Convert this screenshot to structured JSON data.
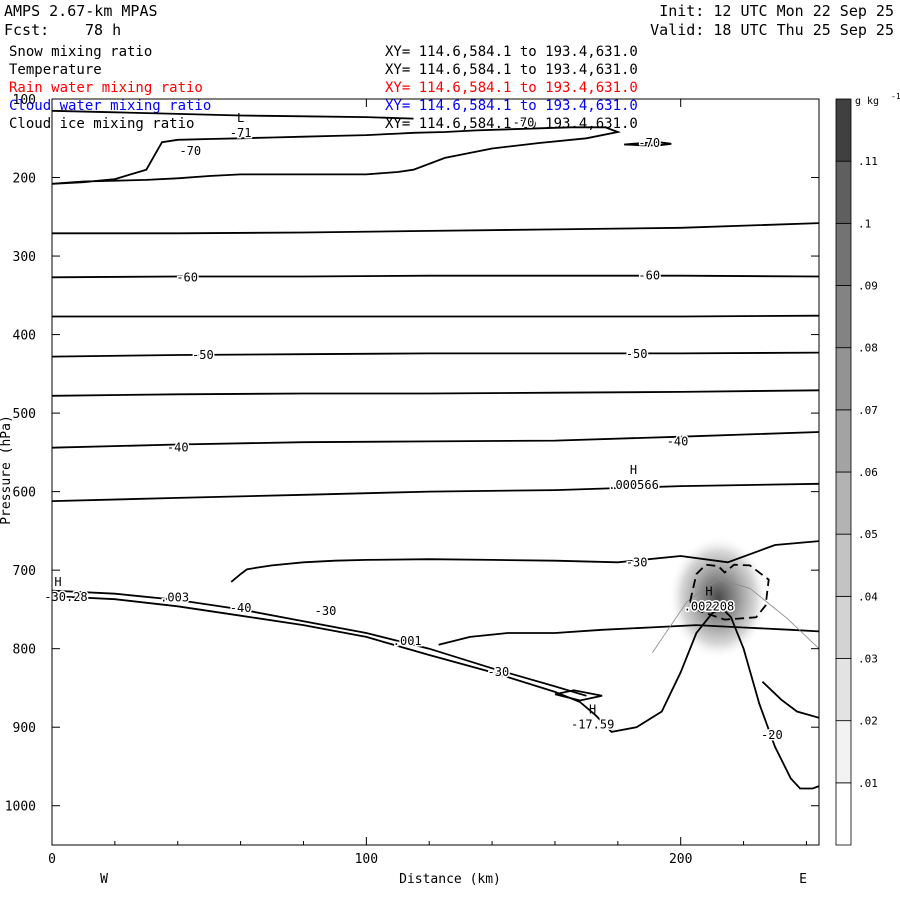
{
  "header": {
    "model": "AMPS 2.67-km MPAS",
    "forecast_label": "Fcst:",
    "forecast_value": "78 h",
    "init": "Init: 12 UTC Mon 22 Sep 25",
    "valid": "Valid: 18 UTC Thu 25 Sep 25"
  },
  "legend": [
    {
      "name": "Snow mixing ratio",
      "xy": "XY= 114.6,584.1 to 193.4,631.0",
      "color": "#000000"
    },
    {
      "name": "Temperature",
      "xy": "XY= 114.6,584.1 to 193.4,631.0",
      "color": "#000000"
    },
    {
      "name": "Rain water mixing ratio",
      "xy": "XY= 114.6,584.1 to 193.4,631.0",
      "color": "#ff0000"
    },
    {
      "name": "Cloud water mixing ratio",
      "xy": "XY= 114.6,584.1 to 193.4,631.0",
      "color": "#0000ff"
    },
    {
      "name": "Cloud ice mixing ratio",
      "xy": "XY= 114.6,584.1 to 193.4,631.0",
      "color": "#000000"
    }
  ],
  "chart_data": {
    "type": "line",
    "xlabel": "Distance (km)",
    "ylabel": "Pressure (hPa)",
    "xlim": [
      0,
      244
    ],
    "ylim": [
      1050,
      100
    ],
    "x_ticks": [
      0,
      100,
      200
    ],
    "y_ticks": [
      100,
      200,
      300,
      400,
      500,
      600,
      700,
      800,
      900,
      1000
    ],
    "x_end_labels": {
      "left": "W",
      "right": "E"
    },
    "colorbar": {
      "units": "g kg",
      "units_exp": "-1",
      "levels": [
        ".01",
        ".02",
        ".03",
        ".04",
        ".05",
        ".06",
        ".07",
        ".08",
        ".09",
        ".1",
        ".11"
      ],
      "shades": [
        "#ffffff",
        "#f2f2f2",
        "#e3e3e3",
        "#d3d3d3",
        "#c3c3c3",
        "#b3b3b3",
        "#a3a3a3",
        "#939393",
        "#838383",
        "#737373",
        "#5f5f5f",
        "#404040"
      ]
    },
    "temperature_isotherms": [
      {
        "label": "-70",
        "x": [
          0,
          10,
          20,
          30,
          40,
          50,
          60,
          70,
          80,
          90,
          100,
          110,
          115,
          125,
          140,
          155,
          170,
          180,
          176,
          165,
          150,
          135,
          125,
          115,
          110,
          100,
          90,
          80,
          70,
          60,
          50,
          40,
          35,
          30,
          20,
          10,
          0
        ],
        "p": [
          208,
          205,
          204,
          203,
          201,
          198,
          196,
          196,
          196,
          196,
          196,
          193,
          190,
          175,
          163,
          156,
          150,
          142,
          136,
          136,
          138,
          140,
          142,
          143,
          144,
          146,
          147,
          148,
          149,
          150,
          151,
          152,
          155,
          190,
          202,
          206,
          208
        ]
      },
      {
        "label": "",
        "x": [
          0,
          20,
          40,
          60,
          80,
          100,
          115
        ],
        "p": [
          115,
          117,
          119,
          121,
          122,
          123,
          125
        ]
      },
      {
        "label": "-70",
        "x": [
          182,
          188,
          193,
          197,
          193,
          188,
          182
        ],
        "p": [
          158,
          156,
          155,
          157,
          159,
          159,
          158
        ]
      },
      {
        "label": "",
        "x": [
          0,
          40,
          80,
          120,
          160,
          200,
          244
        ],
        "p": [
          271,
          271,
          270,
          268,
          266,
          264,
          258
        ]
      },
      {
        "label": "-60",
        "x": [
          0,
          40,
          80,
          120,
          160,
          200,
          244
        ],
        "p": [
          327,
          326,
          326,
          325,
          325,
          325,
          326
        ]
      },
      {
        "label": "",
        "x": [
          0,
          40,
          80,
          120,
          160,
          200,
          244
        ],
        "p": [
          377,
          377,
          377,
          377,
          377,
          377,
          376
        ]
      },
      {
        "label": "-50",
        "x": [
          0,
          40,
          80,
          120,
          160,
          200,
          244
        ],
        "p": [
          428,
          426,
          425,
          424,
          424,
          424,
          423
        ]
      },
      {
        "label": "",
        "x": [
          0,
          40,
          80,
          120,
          160,
          200,
          244
        ],
        "p": [
          478,
          476,
          475,
          475,
          474,
          473,
          471
        ]
      },
      {
        "label": "-40",
        "x": [
          0,
          40,
          80,
          120,
          160,
          200,
          244
        ],
        "p": [
          544,
          540,
          537,
          536,
          535,
          530,
          524
        ]
      },
      {
        "label": "",
        "x": [
          0,
          40,
          80,
          120,
          160,
          200,
          244
        ],
        "p": [
          612,
          608,
          604,
          600,
          598,
          593,
          590
        ]
      },
      {
        "label": "-30",
        "x": [
          57,
          60,
          62,
          65,
          70,
          80,
          90,
          100,
          120,
          140,
          160,
          180,
          200,
          215,
          230,
          244
        ],
        "p": [
          715,
          705,
          699,
          697,
          694,
          690,
          688,
          687,
          686,
          687,
          688,
          690,
          682,
          690,
          668,
          663
        ]
      },
      {
        "label": "-30",
        "x": [
          0,
          20,
          40,
          60,
          80,
          100,
          120,
          140,
          160,
          168,
          173,
          178,
          186,
          194,
          200,
          205,
          210,
          213,
          216,
          220,
          225,
          230,
          235,
          238,
          242,
          244
        ],
        "p": [
          733,
          737,
          746,
          758,
          770,
          785,
          808,
          830,
          855,
          868,
          885,
          906,
          900,
          880,
          830,
          780,
          755,
          748,
          760,
          800,
          870,
          925,
          965,
          978,
          978,
          975
        ]
      },
      {
        "label": "-30",
        "x": [
          0,
          20,
          40,
          60,
          80,
          100,
          120,
          140,
          160,
          170
        ],
        "p": [
          726,
          730,
          738,
          750,
          765,
          780,
          800,
          825,
          848,
          860
        ]
      },
      {
        "label": "-20",
        "x": [
          123,
          133,
          145,
          160,
          175,
          190,
          205,
          220,
          235,
          244
        ],
        "p": [
          795,
          785,
          780,
          780,
          776,
          773,
          770,
          773,
          776,
          778
        ]
      },
      {
        "label": "-20",
        "x": [
          226,
          232,
          237,
          244
        ],
        "p": [
          842,
          865,
          880,
          888
        ]
      },
      {
        "label": "",
        "x": [
          160,
          166,
          175,
          168,
          160
        ],
        "p": [
          858,
          853,
          860,
          866,
          858
        ]
      }
    ],
    "snow_mixing_ratio": [
      {
        "label": "",
        "x": [
          191,
          202,
          212,
          222,
          234,
          244
        ],
        "p": [
          805,
          740,
          712,
          723,
          762,
          800
        ]
      }
    ],
    "cloud_ice_mixing_ratio": [
      {
        "label": "",
        "x": [
          203,
          205,
          208,
          212,
          214,
          217,
          222,
          228,
          227,
          224,
          214,
          206,
          203
        ],
        "p": [
          740,
          705,
          693,
          695,
          703,
          693,
          694,
          712,
          745,
          760,
          763,
          752,
          740
        ]
      }
    ],
    "snow_shading_max": 0.11,
    "annotations": [
      {
        "marker": "L",
        "value": "-71",
        "x": 60,
        "p": 137
      },
      {
        "marker": "H",
        "value": ".000566",
        "x": 185,
        "p": 585
      },
      {
        "marker": "H",
        "value": ".002208",
        "x": 209,
        "p": 740
      },
      {
        "marker": "H",
        "value": "-17.59",
        "x": 172,
        "p": 890
      },
      {
        "marker": "H",
        "value": "-30.28",
        "x": 0,
        "p": 728
      }
    ],
    "inline_labels": [
      {
        "text": "-70",
        "x": 150,
        "p": 130
      },
      {
        "text": "-70",
        "x": 190,
        "p": 156
      },
      {
        "text": "-70",
        "x": 44,
        "p": 166
      },
      {
        "text": "-60",
        "x": 43,
        "p": 327
      },
      {
        "text": "-60",
        "x": 190,
        "p": 325
      },
      {
        "text": "-50",
        "x": 48,
        "p": 426
      },
      {
        "text": "-50",
        "x": 186,
        "p": 425
      },
      {
        "text": "-40",
        "x": 40,
        "p": 544
      },
      {
        "text": "-40",
        "x": 199,
        "p": 536
      },
      {
        "text": "-30",
        "x": 186,
        "p": 690
      },
      {
        "text": "-40",
        "x": 60,
        "p": 748
      },
      {
        "text": "-30",
        "x": 87,
        "p": 752
      },
      {
        "text": "-30",
        "x": 142,
        "p": 830
      },
      {
        "text": ".001",
        "x": 113,
        "p": 790
      },
      {
        "text": ".003",
        "x": 39,
        "p": 735
      },
      {
        "text": "-20",
        "x": 229,
        "p": 910
      }
    ]
  }
}
